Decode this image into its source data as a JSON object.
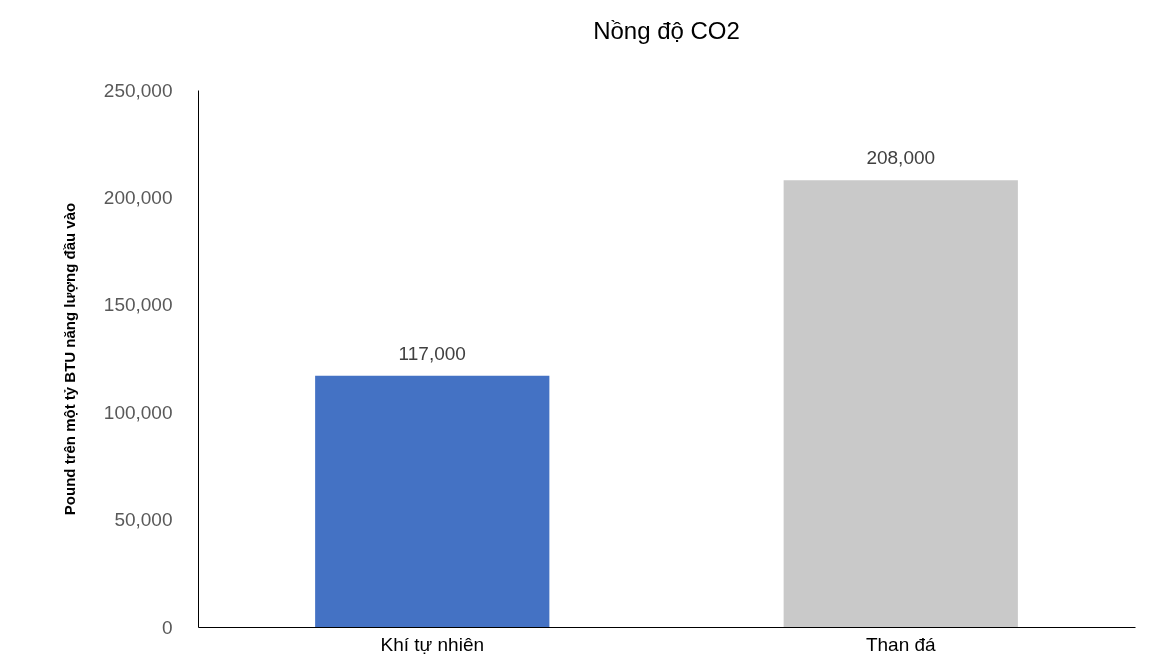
{
  "chart_data": {
    "type": "bar",
    "title": "Nồng độ CO2",
    "ylabel": "Pound trên một tỷ BTU năng lượng đầu vào",
    "categories": [
      "Khí tự nhiên",
      "Than đá"
    ],
    "values": [
      117000,
      208000
    ],
    "value_labels": [
      "117,000",
      "208,000"
    ],
    "colors": [
      "#4472c4",
      "#c9c9c9"
    ],
    "ylim": [
      0,
      250000
    ],
    "yticks": [
      0,
      {
        "value": 50000,
        "label": "50,000"
      },
      {
        "value": 100000,
        "label": "100,000"
      },
      {
        "value": 150000,
        "label": "150,000"
      },
      {
        "value": 200000,
        "label": "200,000"
      },
      {
        "value": 250000,
        "label": "250,000"
      }
    ],
    "grid": false
  }
}
